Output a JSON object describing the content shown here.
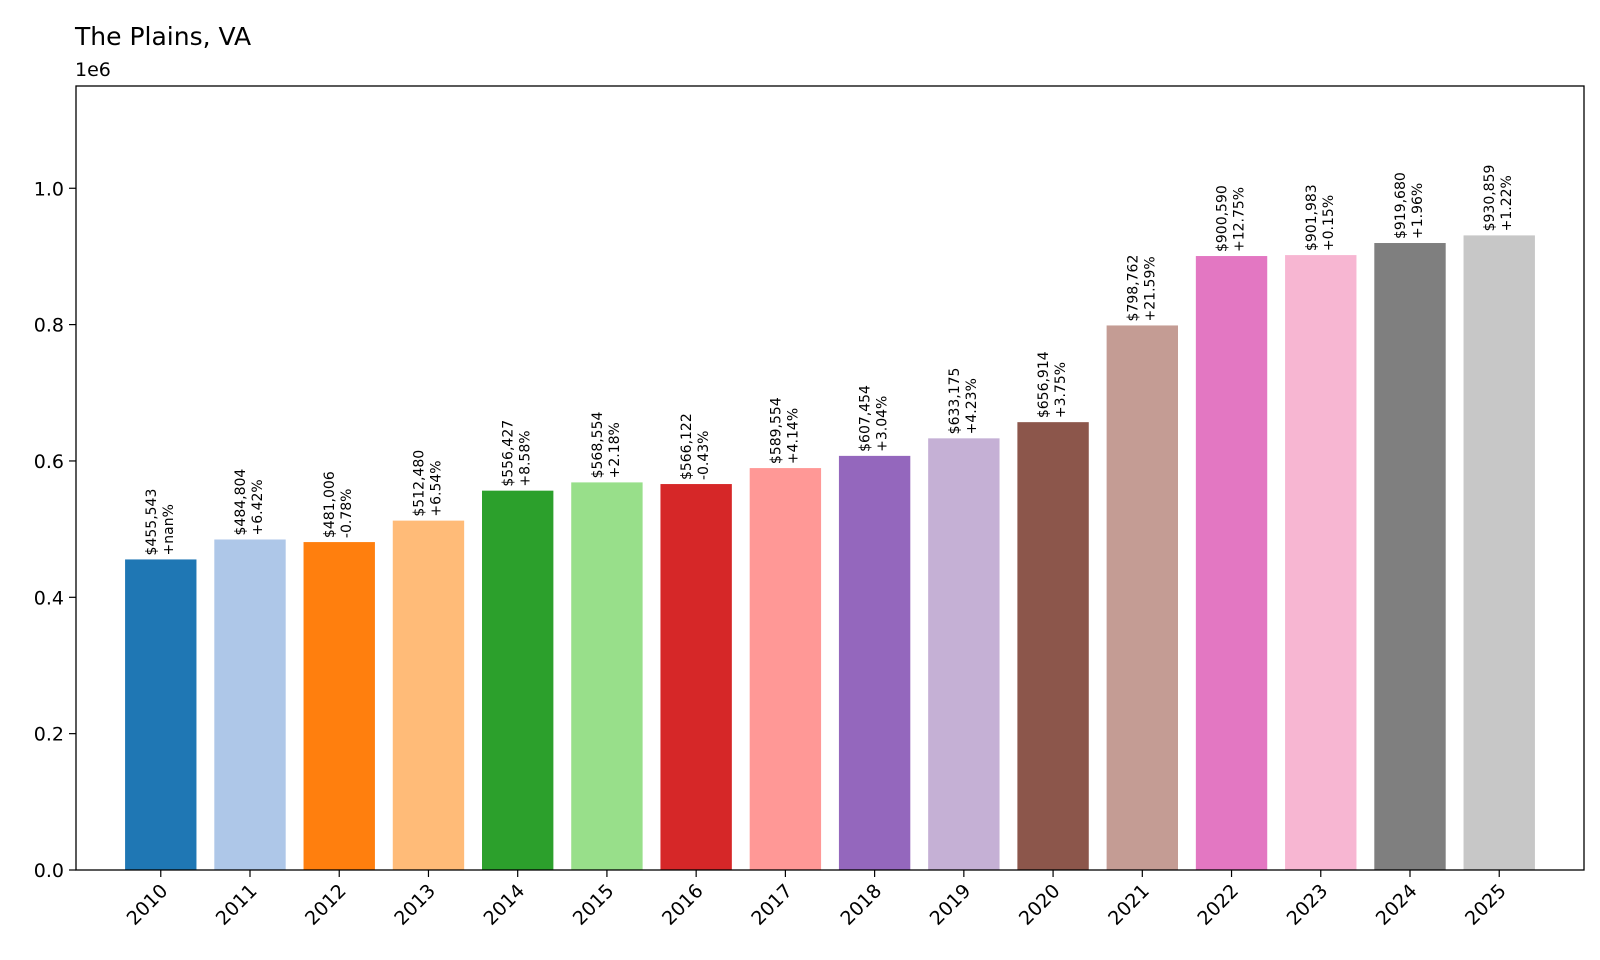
{
  "chart_data": {
    "type": "bar",
    "title": "The Plains, VA",
    "y_offset_label": "1e6",
    "xlabel": "",
    "ylabel": "",
    "categories": [
      "2010",
      "2011",
      "2012",
      "2013",
      "2014",
      "2015",
      "2016",
      "2017",
      "2018",
      "2019",
      "2020",
      "2021",
      "2022",
      "2023",
      "2024",
      "2025"
    ],
    "values": [
      455543,
      484804,
      481006,
      512480,
      556427,
      568554,
      566122,
      589554,
      607454,
      633175,
      656914,
      798762,
      900590,
      901983,
      919680,
      930859
    ],
    "value_labels": [
      "$455,543",
      "$484,804",
      "$481,006",
      "$512,480",
      "$556,427",
      "$568,554",
      "$566,122",
      "$589,554",
      "$607,454",
      "$633,175",
      "$656,914",
      "$798,762",
      "$900,590",
      "$901,983",
      "$919,680",
      "$930,859"
    ],
    "change_labels": [
      "+nan%",
      "+6.42%",
      "-0.78%",
      "+6.54%",
      "+8.58%",
      "+2.18%",
      "-0.43%",
      "+4.14%",
      "+3.04%",
      "+4.23%",
      "+3.75%",
      "+21.59%",
      "+12.75%",
      "+0.15%",
      "+1.96%",
      "+1.22%"
    ],
    "colors": [
      "#1f77b4",
      "#aec7e8",
      "#ff7f0e",
      "#ffbb78",
      "#2ca02c",
      "#98df8a",
      "#d62728",
      "#ff9896",
      "#9467bd",
      "#c5b0d5",
      "#8c564b",
      "#c49c94",
      "#e377c2",
      "#f7b6d2",
      "#7f7f7f",
      "#c7c7c7"
    ],
    "ylim": [
      0,
      1150000
    ],
    "yticks": [
      0,
      200000,
      400000,
      600000,
      800000,
      1000000
    ],
    "ytick_labels": [
      "0.0",
      "0.2",
      "0.4",
      "0.6",
      "0.8",
      "1.0"
    ],
    "grid": false,
    "legend": "none"
  }
}
